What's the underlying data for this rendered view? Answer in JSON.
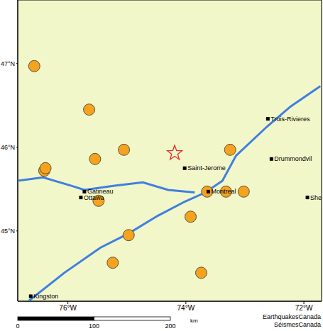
{
  "chart_data": {
    "type": "scatter",
    "xlim": [
      -76.85,
      -71.7
    ],
    "ylim": [
      44.16,
      47.76
    ],
    "xticks": [
      {
        "value": -76,
        "label": "76°W"
      },
      {
        "value": -74,
        "label": "74°W"
      },
      {
        "value": -72,
        "label": "72°W"
      }
    ],
    "yticks": [
      {
        "value": 45,
        "label": "45°N"
      },
      {
        "value": 46,
        "label": "46°N"
      },
      {
        "value": 47,
        "label": "47°N"
      }
    ],
    "grid": true,
    "earthquakes": {
      "color": "#f5a31e",
      "marker": "circle",
      "x": [
        -76.57,
        -75.64,
        -75.05,
        -75.54,
        -76.4,
        -76.38,
        -75.48,
        -74.97,
        -75.24,
        -73.92,
        -73.74,
        -73.64,
        -73.32,
        -73.02,
        -73.25
      ],
      "y": [
        46.97,
        46.45,
        45.97,
        45.86,
        45.72,
        45.75,
        45.36,
        44.95,
        44.62,
        45.17,
        44.5,
        45.47,
        45.47,
        45.47,
        45.97
      ]
    },
    "epicenter": {
      "color": "#e8262a",
      "marker": "star",
      "x": -74.19,
      "y": 45.93
    },
    "cities": [
      {
        "label": "Trois-Rivieres",
        "x": -72.61,
        "y": 46.34
      },
      {
        "label": "Drummondvil",
        "x": -72.55,
        "y": 45.86
      },
      {
        "label": "Saint-Jerome",
        "x": -74.02,
        "y": 45.75
      },
      {
        "label": "Montreal",
        "x": -73.62,
        "y": 45.47
      },
      {
        "label": "Gatineau",
        "x": -75.72,
        "y": 45.47
      },
      {
        "label": "Ottawa",
        "x": -75.78,
        "y": 45.4
      },
      {
        "label": "Kingston",
        "x": -76.63,
        "y": 44.22
      },
      {
        "label": "She",
        "x": -71.94,
        "y": 45.4
      }
    ],
    "rivers": {
      "color": "#3f7fe0",
      "paths": [
        [
          [
            -76.67,
            44.16
          ],
          [
            -76.06,
            44.5
          ],
          [
            -75.45,
            44.8
          ],
          [
            -74.97,
            44.97
          ],
          [
            -74.48,
            45.18
          ],
          [
            -74.02,
            45.35
          ],
          [
            -73.67,
            45.46
          ],
          [
            -73.38,
            45.6
          ],
          [
            -73.15,
            45.9
          ],
          [
            -72.62,
            46.25
          ],
          [
            -72.22,
            46.49
          ],
          [
            -71.72,
            46.73
          ]
        ],
        [
          [
            -76.85,
            45.6
          ],
          [
            -76.42,
            45.64
          ],
          [
            -75.94,
            45.54
          ],
          [
            -75.72,
            45.49
          ],
          [
            -75.21,
            45.54
          ],
          [
            -74.73,
            45.58
          ],
          [
            -74.3,
            45.49
          ],
          [
            -73.85,
            45.46
          ]
        ]
      ]
    },
    "scale_bar": {
      "ticks": [
        0,
        100,
        200
      ],
      "unit": "km"
    },
    "credits": [
      "EarthquakesCanada",
      "SéismesCanada"
    ]
  }
}
